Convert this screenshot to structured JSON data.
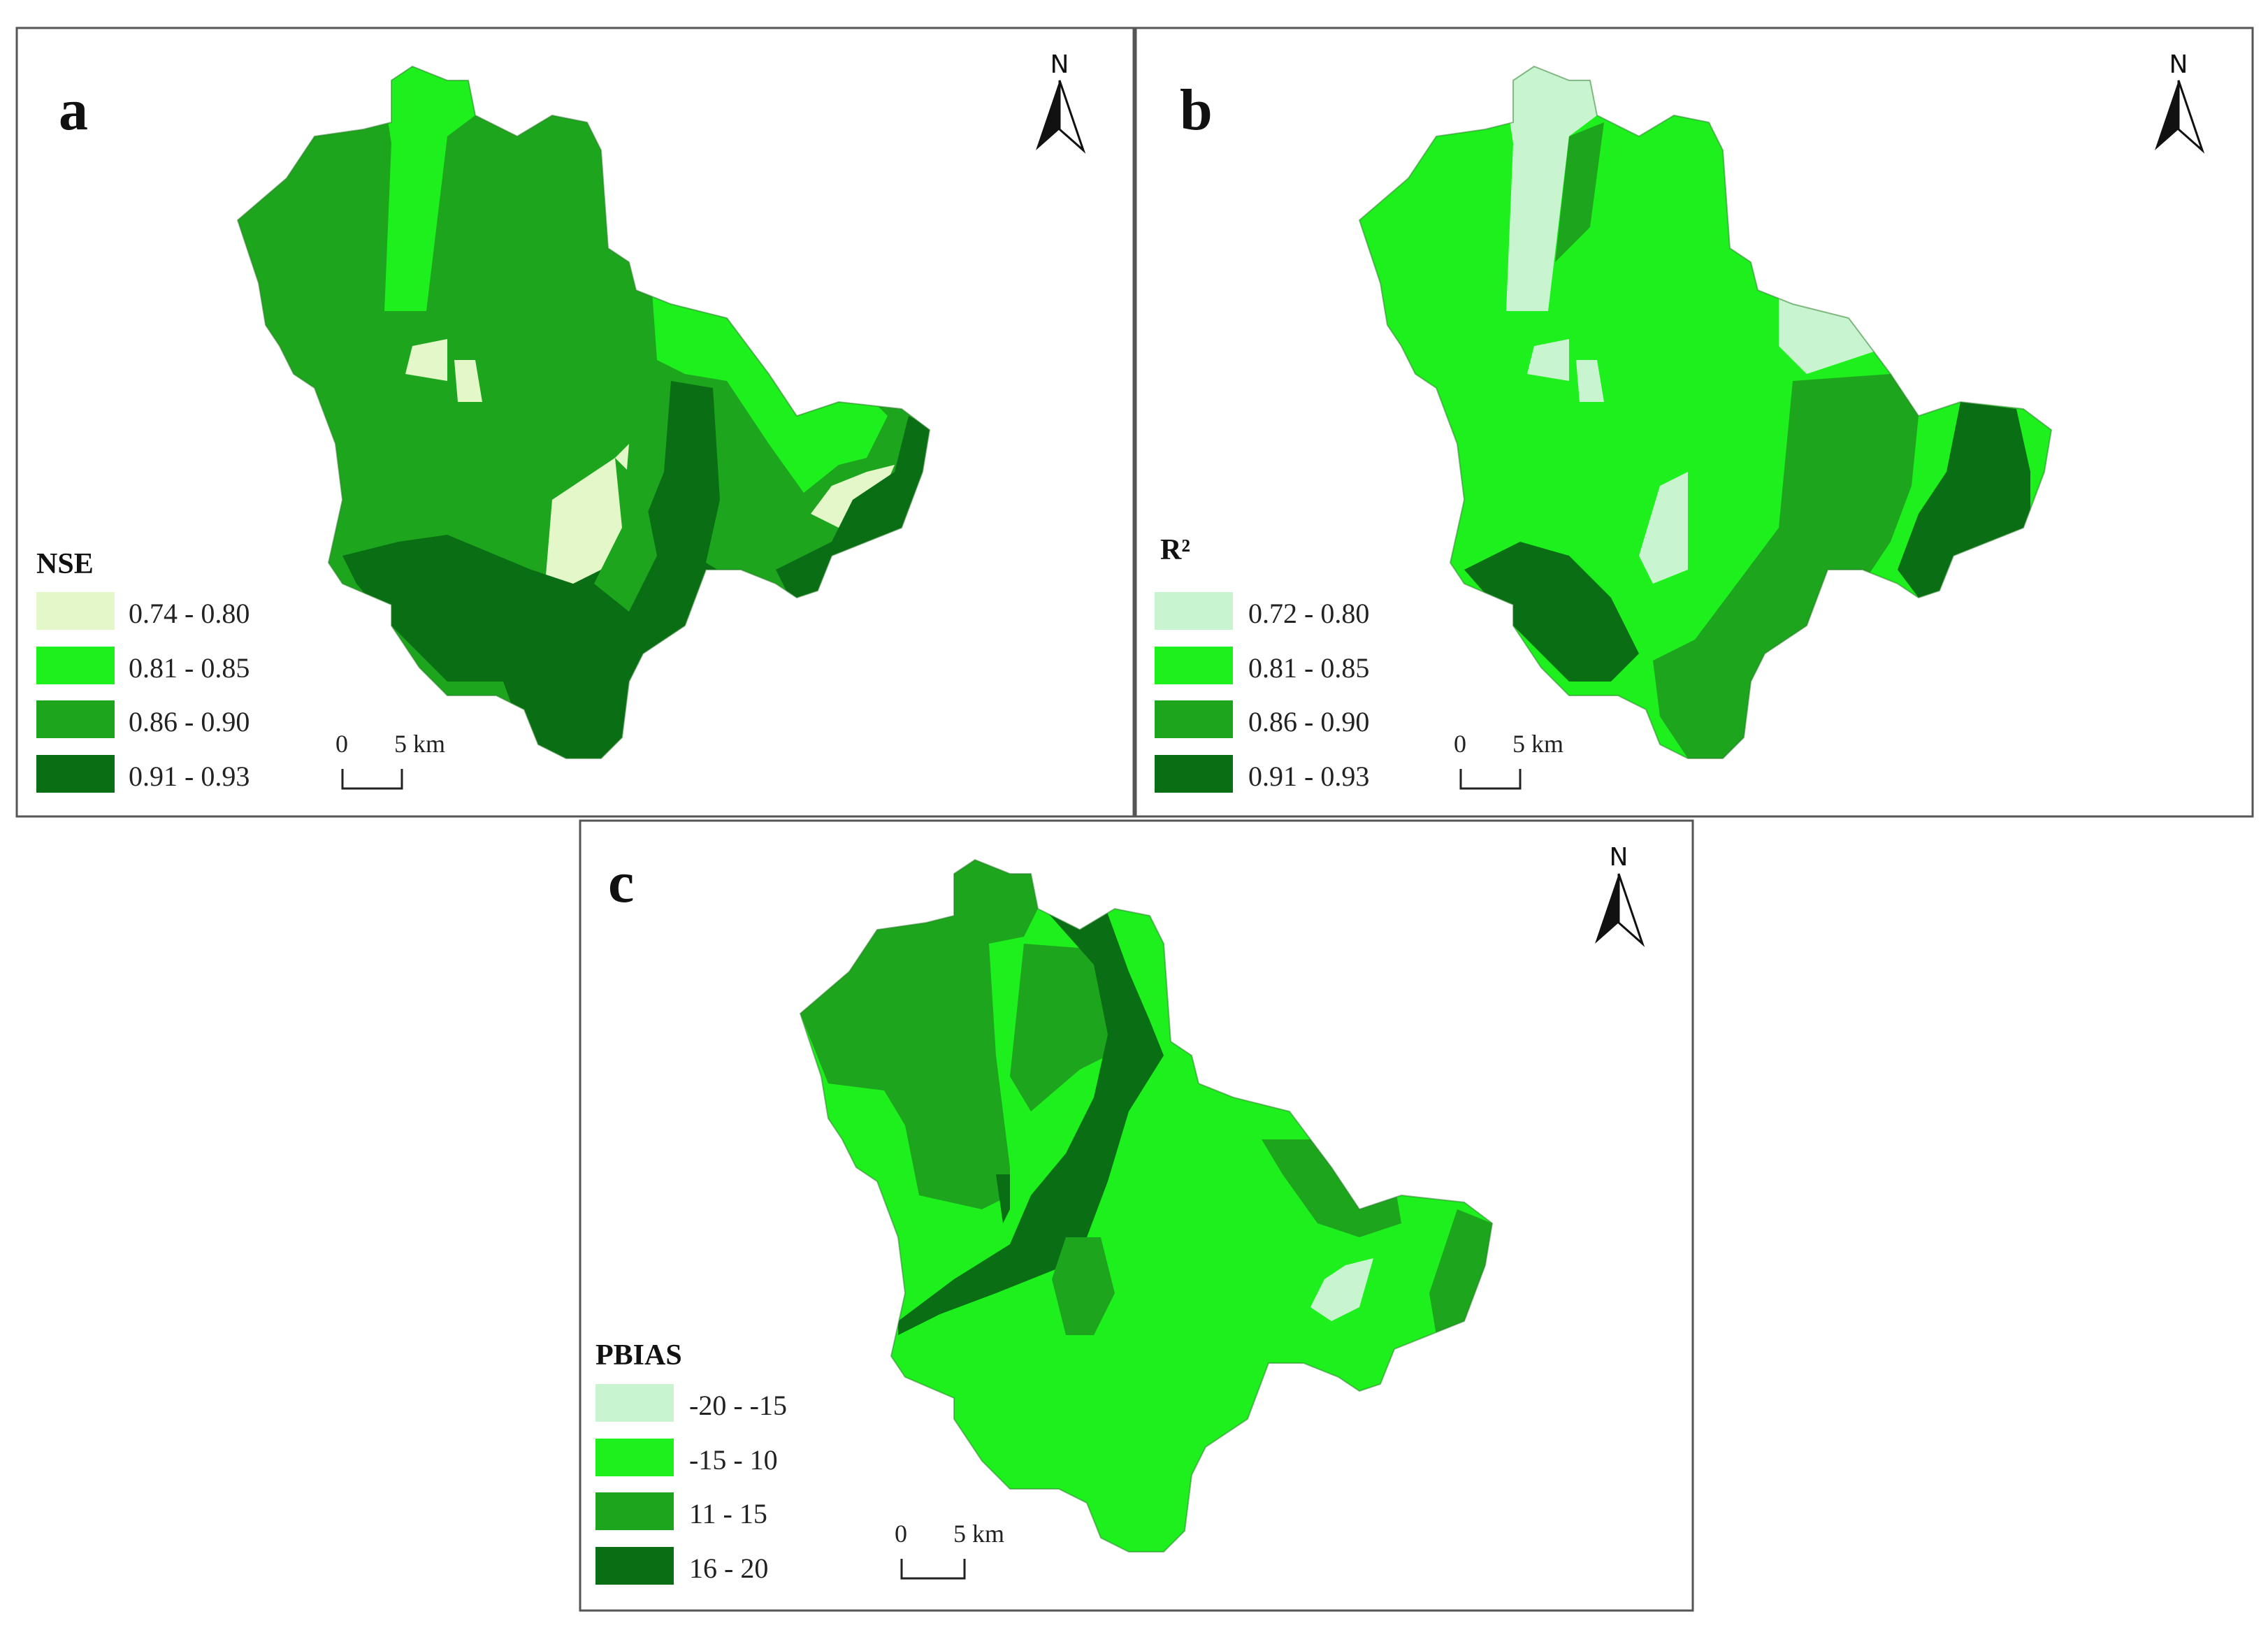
{
  "panels": [
    {
      "label": "a",
      "legend_title": "NSE",
      "legend": [
        {
          "range": "0.74 - 0.80",
          "color": "#e3f7c8"
        },
        {
          "range": "0.81 - 0.85",
          "color": "#1ef01e"
        },
        {
          "range": "0.86 - 0.90",
          "color": "#1ea51e"
        },
        {
          "range": "0.91 - 0.93",
          "color": "#0a6e14"
        }
      ],
      "scale": {
        "zero": "0",
        "five": "5 km"
      },
      "north": "N"
    },
    {
      "label": "b",
      "legend_title": "R²",
      "legend": [
        {
          "range": "0.72 - 0.80",
          "color": "#c8f4cf"
        },
        {
          "range": "0.81 - 0.85",
          "color": "#1ef01e"
        },
        {
          "range": "0.86 - 0.90",
          "color": "#1ea51e"
        },
        {
          "range": "0.91 - 0.93",
          "color": "#0a6e14"
        }
      ],
      "scale": {
        "zero": "0",
        "five": "5 km"
      },
      "north": "N"
    },
    {
      "label": "c",
      "legend_title": "PBIAS",
      "legend": [
        {
          "range": "-20 - -15",
          "color": "#c8f4cf"
        },
        {
          "range": "-15 - 10",
          "color": "#1ef01e"
        },
        {
          "range": "11 - 15",
          "color": "#1ea51e"
        },
        {
          "range": "16 - 20",
          "color": "#0a6e14"
        }
      ],
      "scale": {
        "zero": "0",
        "five": "5 km"
      },
      "north": "N"
    }
  ]
}
